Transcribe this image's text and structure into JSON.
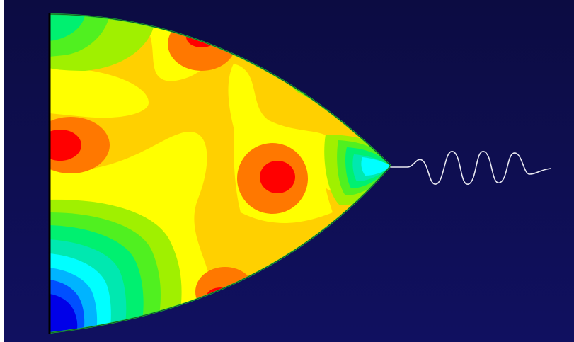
{
  "scene": {
    "background_top": "#0c0c42",
    "background_bottom": "#101060",
    "frame_color": "#ffffff",
    "outline_color": "#20c040",
    "signal_color": "#e8e8f0"
  },
  "contour_palette": [
    "#0000e8",
    "#0050ff",
    "#00b4ff",
    "#00ffff",
    "#00e8b0",
    "#00f070",
    "#50f020",
    "#a0f000",
    "#ffff00",
    "#ffd000",
    "#ff7800",
    "#ff0000"
  ]
}
